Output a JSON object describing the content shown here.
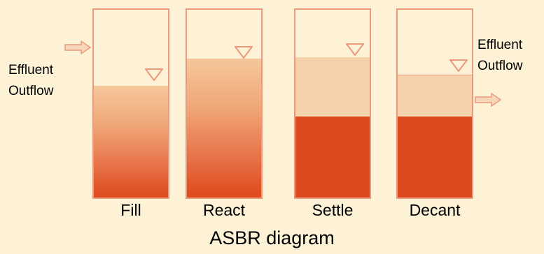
{
  "diagram": {
    "caption": "ASBR diagram",
    "inflow_label": {
      "line1": "Effluent",
      "line2": "Outflow"
    },
    "outflow_label": {
      "line1": "Effluent",
      "line2": "Outflow"
    },
    "phases": [
      {
        "label": "Fill"
      },
      {
        "label": "React"
      },
      {
        "label": "Settle"
      },
      {
        "label": "Decant"
      }
    ],
    "colors": {
      "background": "#fdf1d6",
      "tank_outline": "#ec9a7e",
      "sludge": "#dc4a1f",
      "supernatant": "#f6d2ac",
      "liquid_top": "#f5c79c",
      "liquid_bottom": "#dd4a1c"
    }
  }
}
